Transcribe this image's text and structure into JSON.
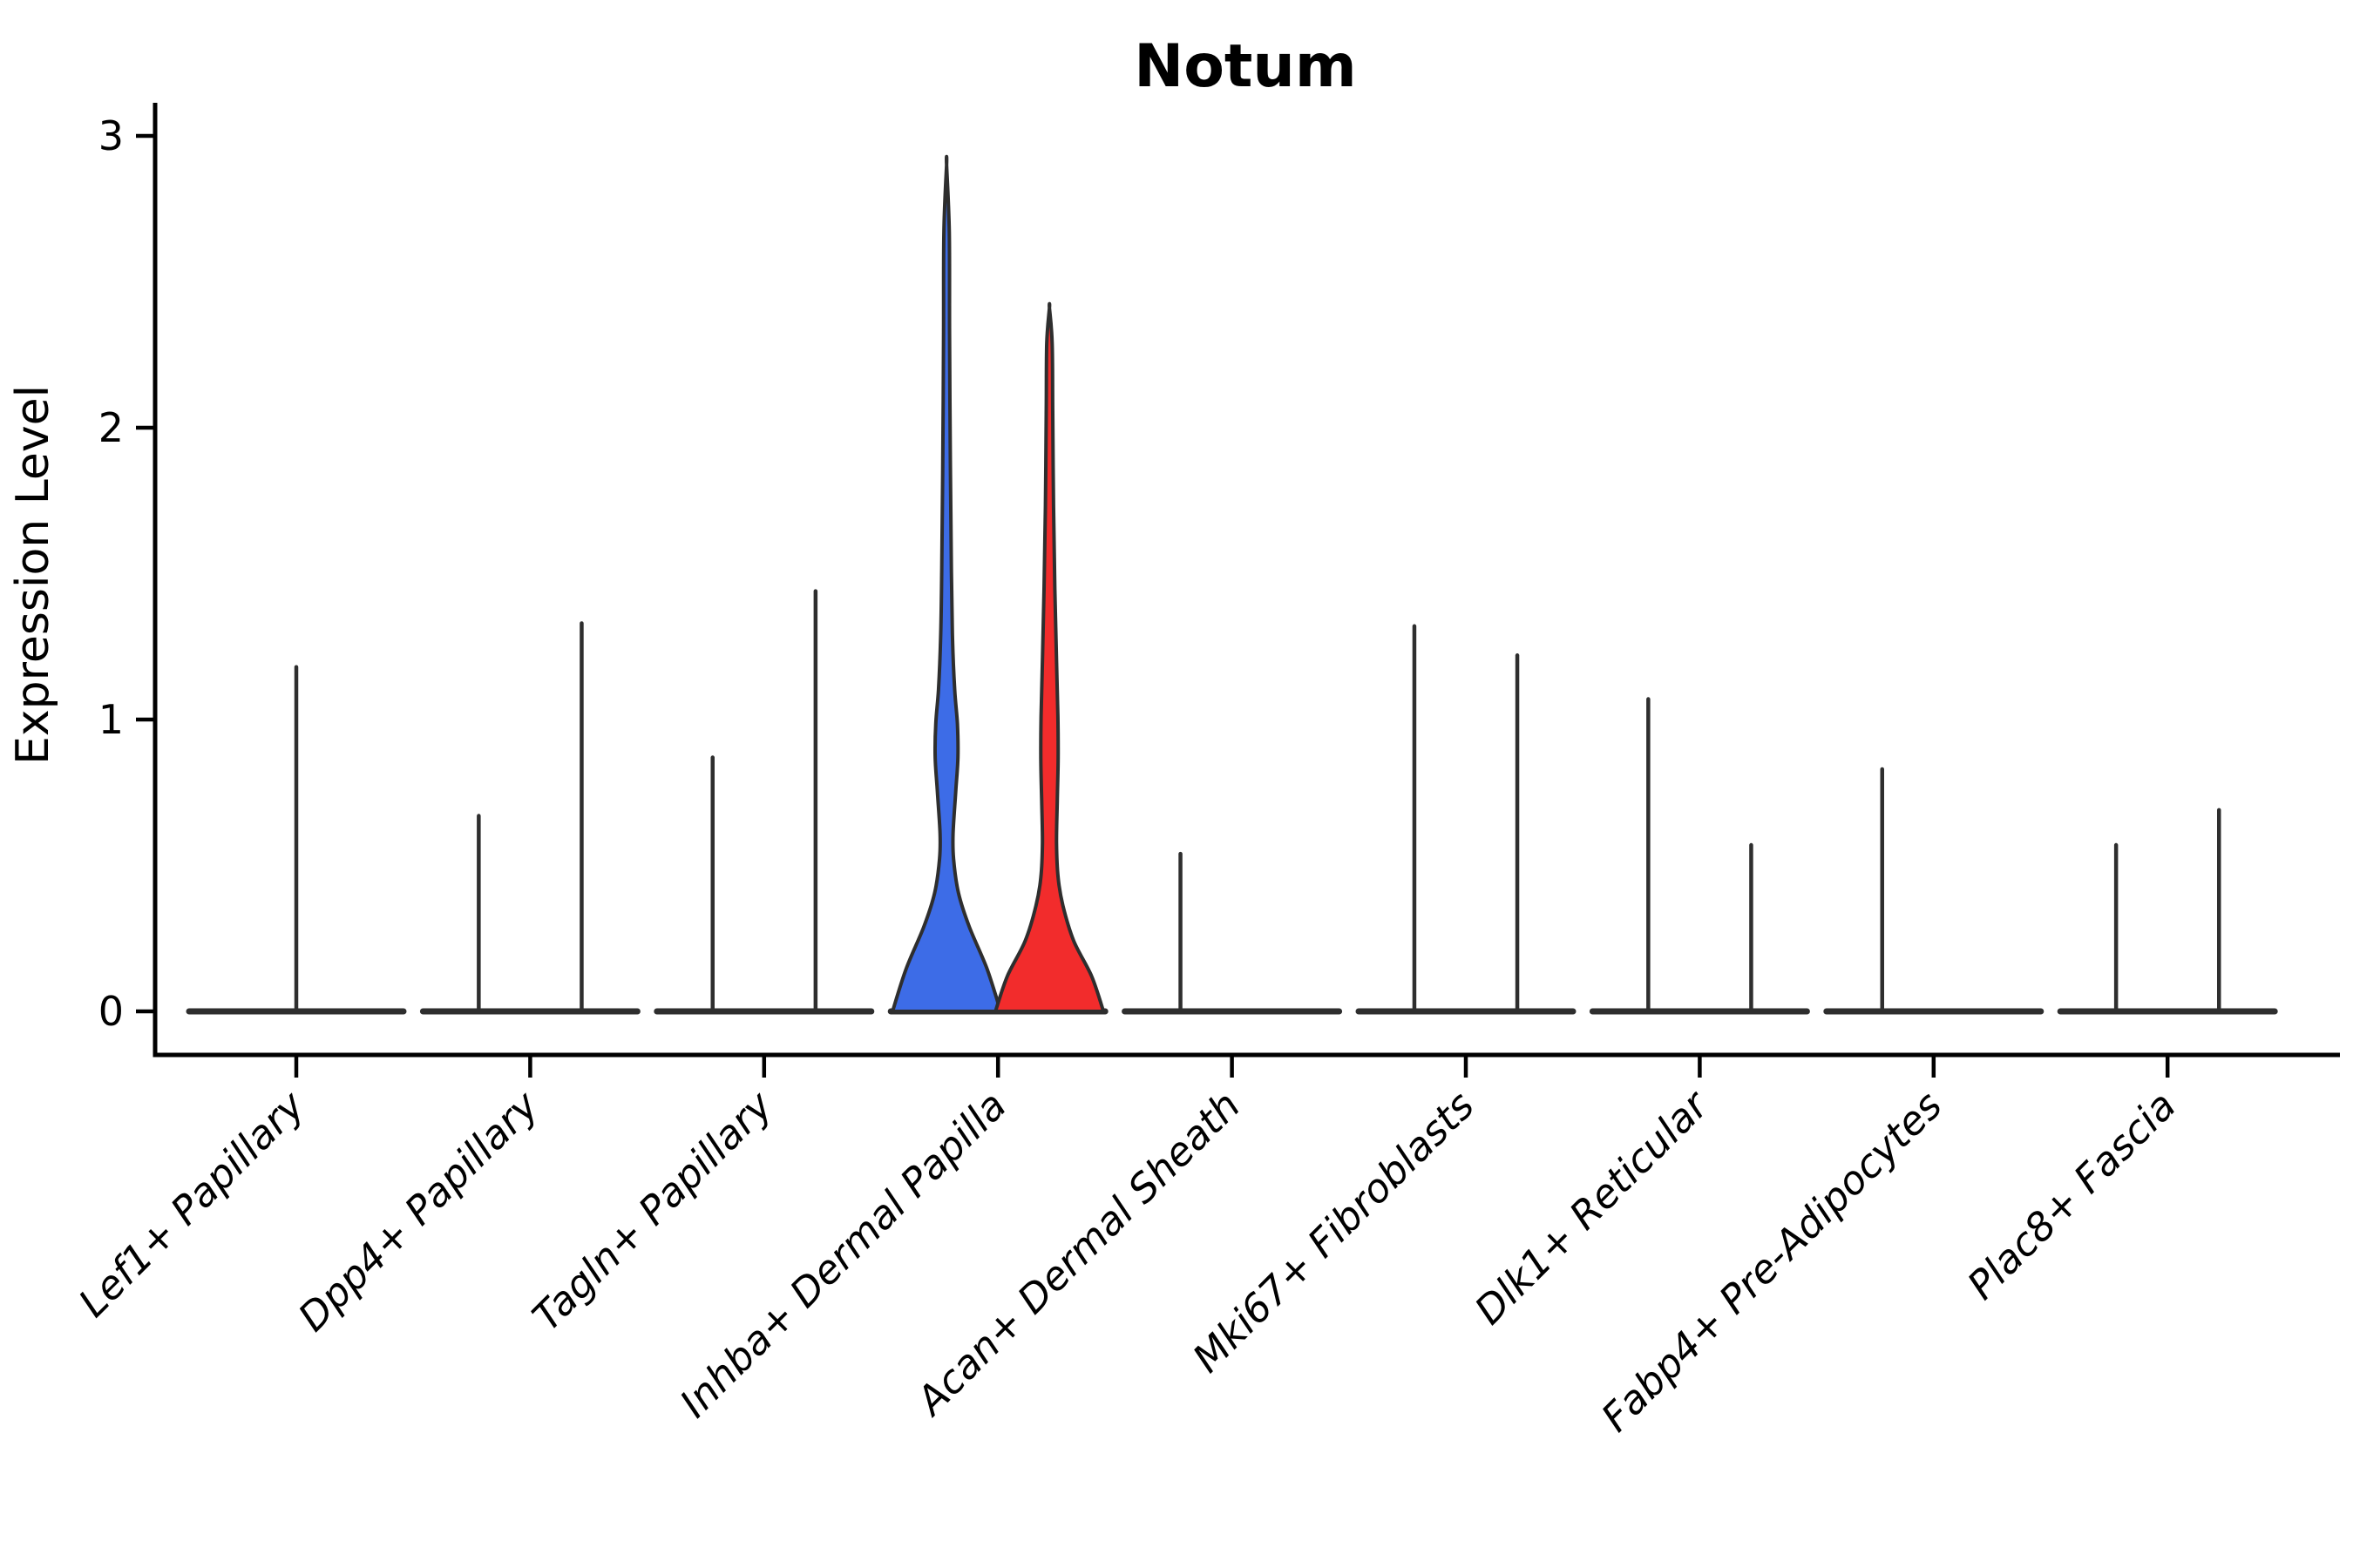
{
  "title": "Notum",
  "y_axis": {
    "label": "Expression Level",
    "tick_labels": [
      "0",
      "1",
      "2",
      "3"
    ]
  },
  "chart_data": {
    "type": "violin",
    "title": "Notum",
    "xlabel": "",
    "ylabel": "Expression Level",
    "ylim": [
      0,
      3.05
    ],
    "yticks": [
      0,
      1,
      2,
      3
    ],
    "grid": false,
    "legend": "none",
    "categories": [
      "Lef1+ Papillary",
      "Dpp4+ Papillary",
      "Tagln+ Papillary",
      "Inhba+ Dermal Papilla",
      "Acan+ Dermal Sheath",
      "Mki67+ Fibroblasts",
      "Dlk1+ Reticular",
      "Fabp4+ Pre-Adipocytes",
      "Plac8+ Fascia"
    ],
    "groups_note": "two dodged violins per category; most are collapsed to zero with a thin max-value spike",
    "colors": {
      "blue_fill": "#3D6CE7",
      "red_fill": "#F22C2C",
      "outline": "#2e2e2e",
      "axis": "#000000"
    },
    "violins": [
      {
        "category_index": 0,
        "offset": 0,
        "max": 1.18,
        "style": "collapsed"
      },
      {
        "category_index": 1,
        "offset": -0.22,
        "max": 0.67,
        "style": "collapsed"
      },
      {
        "category_index": 1,
        "offset": 0.22,
        "max": 1.33,
        "style": "collapsed"
      },
      {
        "category_index": 2,
        "offset": -0.22,
        "max": 0.87,
        "style": "collapsed"
      },
      {
        "category_index": 2,
        "offset": 0.22,
        "max": 1.44,
        "style": "collapsed"
      },
      {
        "category_index": 3,
        "offset": -0.22,
        "max": 2.9,
        "style": "violin",
        "fill": "#3D6CE7",
        "profile": "blue"
      },
      {
        "category_index": 3,
        "offset": 0.22,
        "max": 2.41,
        "style": "violin",
        "fill": "#F22C2C",
        "profile": "red"
      },
      {
        "category_index": 4,
        "offset": -0.22,
        "max": 0.54,
        "style": "collapsed"
      },
      {
        "category_index": 5,
        "offset": -0.22,
        "max": 1.32,
        "style": "collapsed"
      },
      {
        "category_index": 5,
        "offset": 0.22,
        "max": 1.22,
        "style": "collapsed"
      },
      {
        "category_index": 6,
        "offset": -0.22,
        "max": 1.07,
        "style": "collapsed"
      },
      {
        "category_index": 6,
        "offset": 0.22,
        "max": 0.57,
        "style": "collapsed"
      },
      {
        "category_index": 7,
        "offset": -0.22,
        "max": 0.83,
        "style": "collapsed"
      },
      {
        "category_index": 8,
        "offset": -0.22,
        "max": 0.57,
        "style": "collapsed"
      },
      {
        "category_index": 8,
        "offset": 0.22,
        "max": 0.69,
        "style": "collapsed"
      }
    ],
    "profiles": {
      "blue": [
        [
          0,
          1.0
        ],
        [
          0.05,
          0.75
        ],
        [
          0.1,
          0.42
        ],
        [
          0.14,
          0.22
        ],
        [
          0.18,
          0.13
        ],
        [
          0.21,
          0.12
        ],
        [
          0.26,
          0.17
        ],
        [
          0.3,
          0.21
        ],
        [
          0.34,
          0.2
        ],
        [
          0.38,
          0.15
        ],
        [
          0.44,
          0.11
        ],
        [
          0.52,
          0.09
        ],
        [
          0.65,
          0.07
        ],
        [
          0.8,
          0.055
        ],
        [
          0.92,
          0.05
        ],
        [
          1,
          0
        ]
      ],
      "red": [
        [
          0,
          1.0
        ],
        [
          0.05,
          0.78
        ],
        [
          0.1,
          0.45
        ],
        [
          0.15,
          0.25
        ],
        [
          0.19,
          0.16
        ],
        [
          0.24,
          0.13
        ],
        [
          0.3,
          0.145
        ],
        [
          0.36,
          0.16
        ],
        [
          0.42,
          0.155
        ],
        [
          0.5,
          0.13
        ],
        [
          0.6,
          0.1
        ],
        [
          0.72,
          0.075
        ],
        [
          0.85,
          0.06
        ],
        [
          0.95,
          0.05
        ],
        [
          1,
          0
        ]
      ]
    }
  }
}
